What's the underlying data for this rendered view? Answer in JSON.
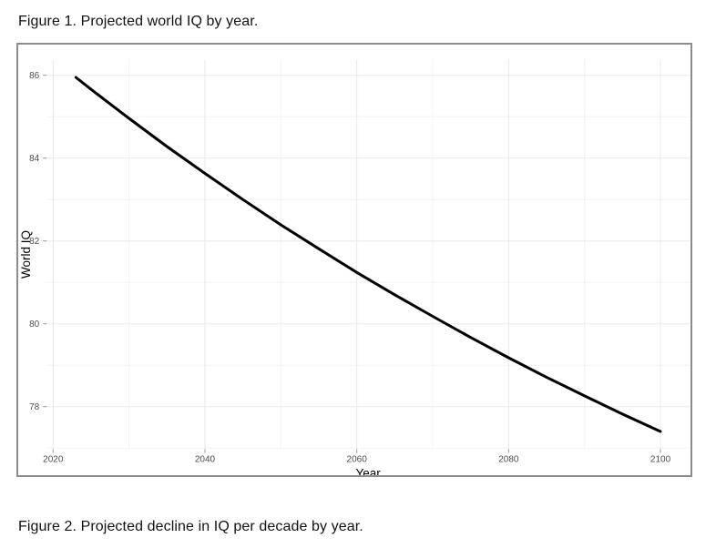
{
  "figure1": {
    "caption": "Figure 1. Projected world IQ by year."
  },
  "figure2": {
    "caption": "Figure 2. Projected decline in IQ per decade by year."
  },
  "chart_data": {
    "type": "line",
    "title": "",
    "xlabel": "Year",
    "ylabel": "World IQ",
    "x_major_ticks": [
      2020,
      2040,
      2060,
      2080,
      2100
    ],
    "x_minor_ticks": [
      2030,
      2050,
      2070,
      2090
    ],
    "y_major_ticks": [
      78,
      80,
      82,
      84,
      86
    ],
    "y_minor_ticks": [
      77,
      79,
      81,
      83,
      85
    ],
    "xlim": [
      2019.15,
      2103.85
    ],
    "ylim": [
      76.97,
      86.38
    ],
    "grid": "major+minor",
    "legend": "none",
    "line": {
      "color": "#000000",
      "width": 3
    },
    "colors": {
      "grid_major": "#e8e8e8",
      "grid_minor": "#f3f3f3",
      "tick_mark": "#999999",
      "tick_label": "#4d4d4d",
      "axis_title": "#000000",
      "frame_border": "#8c8c8c"
    },
    "series": [
      {
        "name": "Projected world IQ",
        "x": [
          2023,
          2025,
          2030,
          2035,
          2040,
          2045,
          2050,
          2055,
          2060,
          2065,
          2070,
          2075,
          2080,
          2085,
          2090,
          2095,
          2100
        ],
        "y": [
          85.95,
          85.66,
          84.96,
          84.28,
          83.63,
          83.0,
          82.39,
          81.81,
          81.24,
          80.7,
          80.18,
          79.67,
          79.18,
          78.71,
          78.26,
          77.82,
          77.4
        ]
      }
    ]
  }
}
